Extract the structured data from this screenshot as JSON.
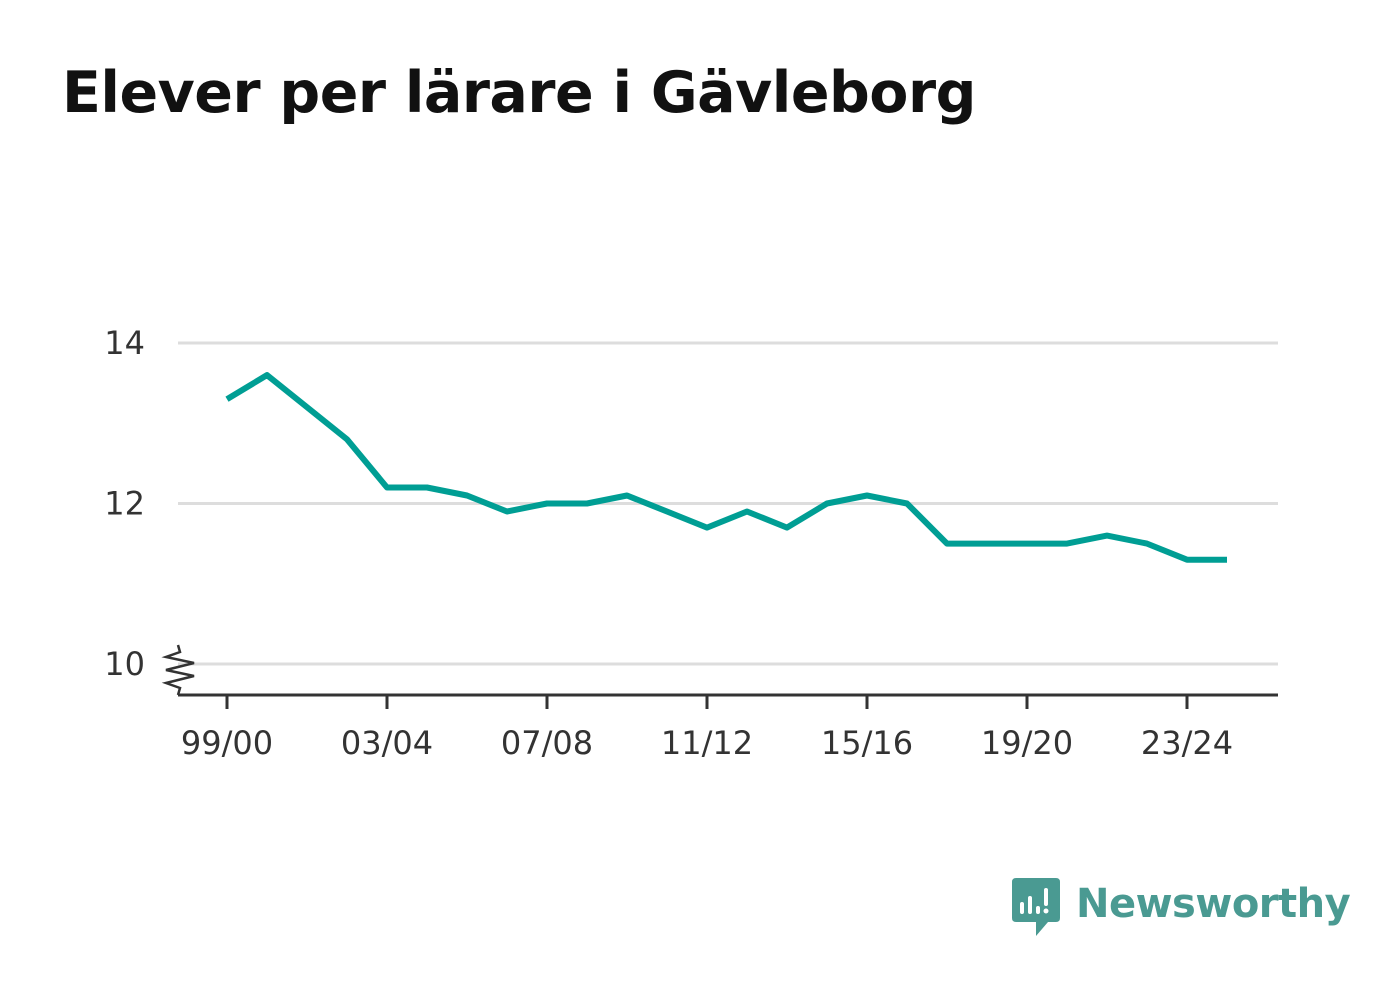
{
  "title": "Elever per lärare i Gävleborg",
  "brand": {
    "name": "Newsworthy",
    "icon": "newsworthy-logo-icon",
    "color": "#4a9a92"
  },
  "colors": {
    "line": "#009e94",
    "grid": "#dddddd",
    "axis": "#333333"
  },
  "chart_data": {
    "type": "line",
    "title": "Elever per lärare i Gävleborg",
    "xlabel": "",
    "ylabel": "",
    "x": [
      "99/00",
      "00/01",
      "01/02",
      "02/03",
      "03/04",
      "04/05",
      "05/06",
      "06/07",
      "07/08",
      "08/09",
      "09/10",
      "10/11",
      "11/12",
      "12/13",
      "13/14",
      "14/15",
      "15/16",
      "16/17",
      "17/18",
      "18/19",
      "19/20",
      "20/21",
      "21/22",
      "22/23",
      "23/24",
      "24/25"
    ],
    "x_tick_labels": [
      "99/00",
      "03/04",
      "07/08",
      "11/12",
      "15/16",
      "19/20",
      "23/24"
    ],
    "series": [
      {
        "values": [
          13.3,
          13.6,
          13.2,
          12.8,
          12.2,
          12.2,
          12.1,
          11.9,
          12.0,
          12.0,
          12.1,
          11.9,
          11.7,
          11.9,
          11.7,
          12.0,
          12.1,
          12.0,
          11.5,
          11.5,
          11.5,
          11.5,
          11.6,
          11.5,
          11.3,
          11.3
        ]
      }
    ],
    "y_ticks": [
      10,
      12,
      14
    ],
    "ylim": [
      9.6,
      14.0
    ],
    "axis_break": true,
    "grid": "horizontal",
    "legend": "none"
  }
}
